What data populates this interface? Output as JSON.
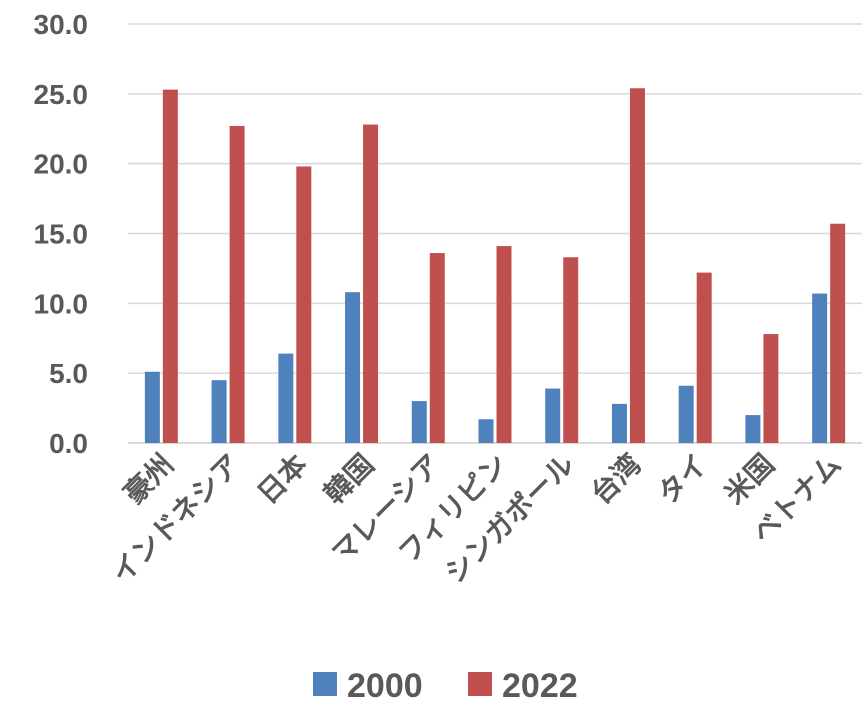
{
  "chart_data": {
    "type": "bar",
    "title": "",
    "xlabel": "",
    "ylabel": "",
    "categories": [
      "豪州",
      "インドネシア",
      "日本",
      "韓国",
      "マレーシア",
      "フィリピン",
      "シンガポール",
      "台湾",
      "タイ",
      "米国",
      "ベトナム"
    ],
    "series": [
      {
        "name": "2000",
        "color": "#4f81bd",
        "values": [
          5.1,
          4.5,
          6.4,
          10.8,
          3.0,
          1.7,
          3.9,
          2.8,
          4.1,
          2.0,
          10.7
        ]
      },
      {
        "name": "2022",
        "color": "#c0504d",
        "values": [
          25.3,
          22.7,
          19.8,
          22.8,
          13.6,
          14.1,
          13.3,
          25.4,
          12.2,
          7.8,
          15.7
        ]
      }
    ],
    "ylim": [
      0,
      30
    ],
    "yticks": [
      "0.0",
      "5.0",
      "10.0",
      "15.0",
      "20.0",
      "25.0",
      "30.0"
    ],
    "grid": true,
    "legend_position": "bottom"
  }
}
